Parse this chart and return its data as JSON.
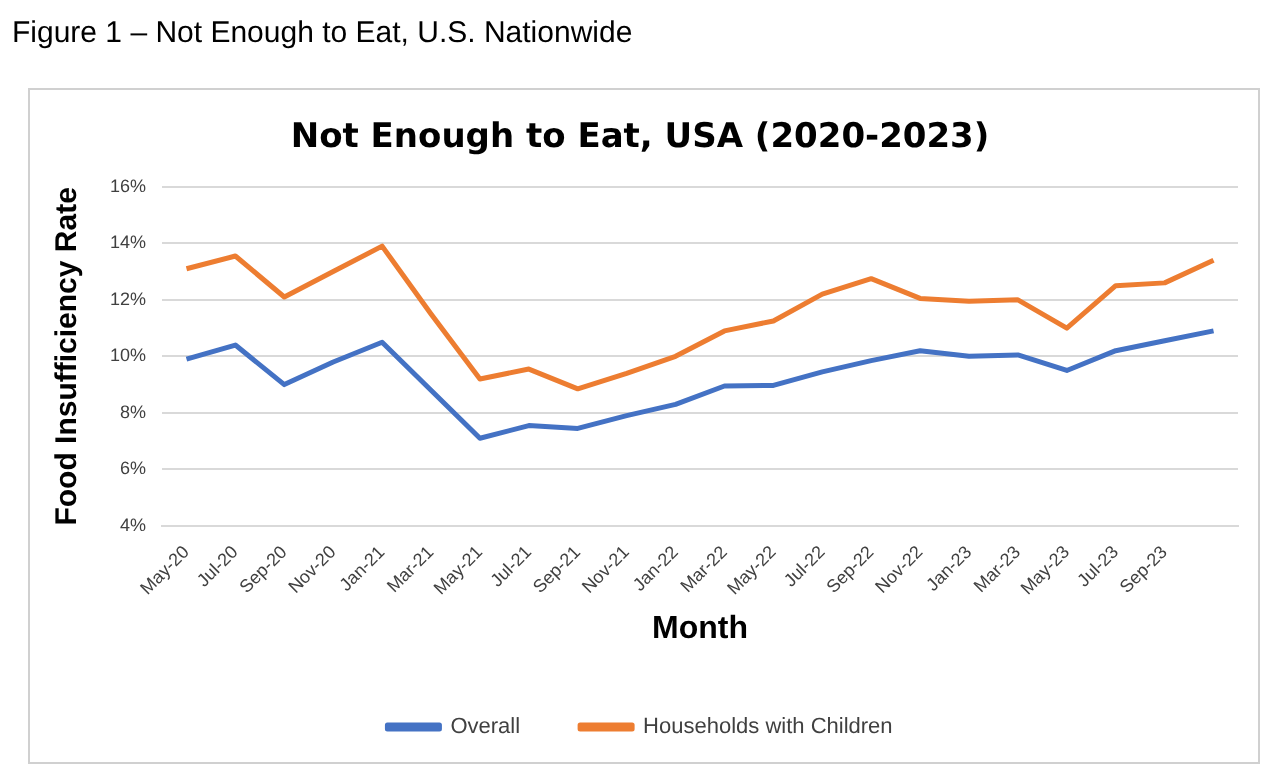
{
  "chart_data": {
    "type": "line",
    "title": "Not Enough to Eat, USA (2020-2023)",
    "xlabel": "Month",
    "ylabel": "Food Insufficiency Rate",
    "annotations": [
      "Figure 1 – Not Enough to Eat, U.S. Nationwide"
    ],
    "categories": [
      "May-20",
      "Jul-20",
      "Sep-20",
      "Nov-20",
      "Jan-21",
      "Mar-21",
      "May-21",
      "Jul-21",
      "Sep-21",
      "Nov-21",
      "Jan-22",
      "Mar-22",
      "May-22",
      "Jul-22",
      "Sep-22",
      "Nov-22",
      "Jan-23",
      "Mar-23",
      "May-23",
      "Jul-23",
      "Sep-23",
      null
    ],
    "series": [
      {
        "name": "Overall",
        "color": "#4472c4",
        "values": [
          9.9,
          10.4,
          9.0,
          9.8,
          10.5,
          8.8,
          7.1,
          7.55,
          7.45,
          7.9,
          8.3,
          8.95,
          8.97,
          9.45,
          9.85,
          10.2,
          10.0,
          10.05,
          9.5,
          10.2,
          10.55,
          10.9
        ]
      },
      {
        "name": "Households with Children",
        "color": "#ed7d31",
        "values": [
          13.1,
          13.55,
          12.1,
          13.0,
          13.9,
          11.5,
          9.2,
          9.55,
          8.85,
          9.4,
          10.0,
          10.9,
          11.25,
          12.2,
          12.75,
          12.05,
          11.95,
          12.0,
          11.0,
          12.5,
          12.6,
          13.4
        ]
      }
    ],
    "ylim": [
      4,
      16
    ],
    "yticks": [
      {
        "value": 4,
        "label": "4%"
      },
      {
        "value": 6,
        "label": "6%"
      },
      {
        "value": 8,
        "label": "8%"
      },
      {
        "value": 10,
        "label": "10%"
      },
      {
        "value": 12,
        "label": "12%"
      },
      {
        "value": 14,
        "label": "14%"
      },
      {
        "value": 16,
        "label": "16%"
      }
    ],
    "grid": "y",
    "legend": "bottom",
    "marker": "none",
    "line_style": "solid"
  }
}
